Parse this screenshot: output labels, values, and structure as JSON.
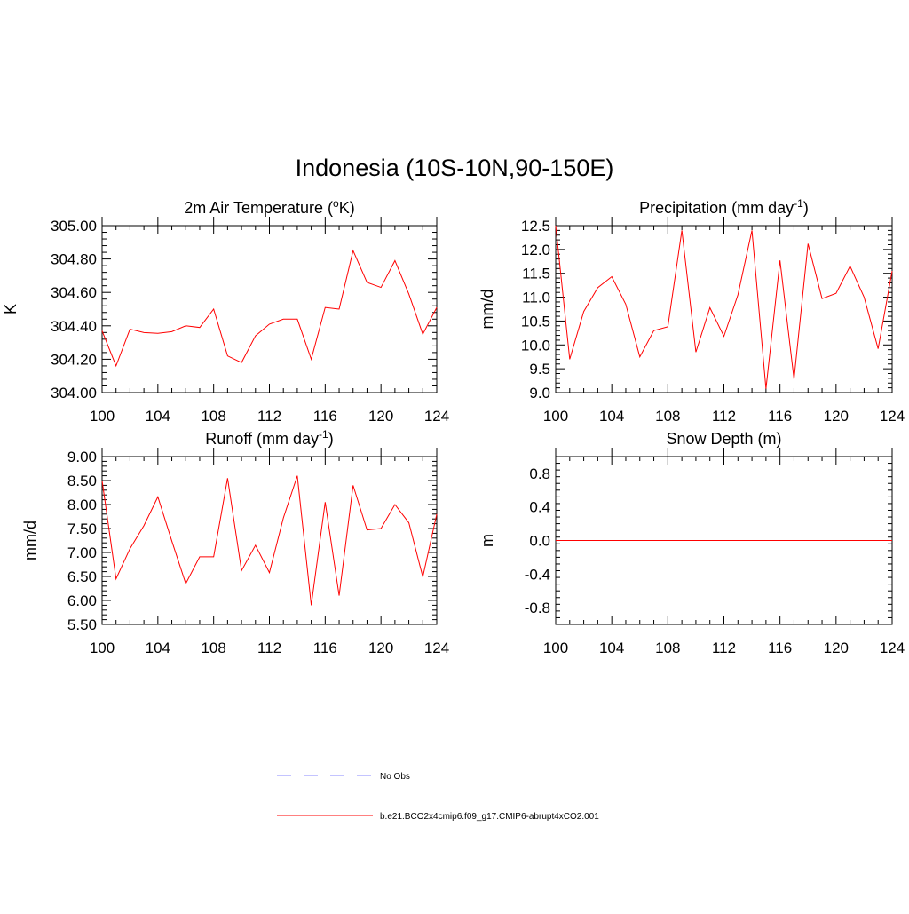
{
  "title": "Indonesia (10S-10N,90-150E)",
  "colors": {
    "model": "#ff0000",
    "obs": "#a0a0ff",
    "frame": "#000000"
  },
  "legend": {
    "obs_label": "No Obs",
    "model_label": "b.e21.BCO2x4cmip6.f09_g17.CMIP6-abrupt4xCO2.001"
  },
  "chart_data": [
    {
      "id": "temp",
      "type": "line",
      "title": "2m Air Temperature (",
      "title_sup": "o",
      "title_suffix": "K)",
      "ylabel": "K",
      "xlim": [
        100,
        124
      ],
      "ylim": [
        304.0,
        305.0
      ],
      "xticks": [
        100,
        104,
        108,
        112,
        116,
        120,
        124
      ],
      "yticks": [
        "304.00",
        "304.20",
        "304.40",
        "304.60",
        "304.80",
        "305.00"
      ],
      "ytick_values": [
        304.0,
        304.2,
        304.4,
        304.6,
        304.8,
        305.0
      ],
      "x": [
        100,
        101,
        102,
        103,
        104,
        105,
        106,
        107,
        108,
        109,
        110,
        111,
        112,
        113,
        114,
        115,
        116,
        117,
        118,
        119,
        120,
        121,
        122,
        123,
        124
      ],
      "series": [
        {
          "values": [
            304.37,
            304.16,
            304.38,
            304.36,
            304.355,
            304.365,
            304.4,
            304.39,
            304.5,
            304.22,
            304.18,
            304.34,
            304.41,
            304.44,
            304.44,
            304.2,
            304.51,
            304.5,
            304.85,
            304.66,
            304.63,
            304.79,
            304.59,
            304.35,
            304.51
          ]
        }
      ]
    },
    {
      "id": "precip",
      "type": "line",
      "title": "Precipitation (mm day",
      "title_sup": "-1",
      "title_suffix": ")",
      "ylabel": "mm/d",
      "xlim": [
        100,
        124
      ],
      "ylim": [
        9.0,
        12.5
      ],
      "xticks": [
        100,
        104,
        108,
        112,
        116,
        120,
        124
      ],
      "yticks": [
        "9.0",
        "9.5",
        "10.0",
        "10.5",
        "11.0",
        "11.5",
        "12.0",
        "12.5"
      ],
      "ytick_values": [
        9.0,
        9.5,
        10.0,
        10.5,
        11.0,
        11.5,
        12.0,
        12.5
      ],
      "x": [
        100,
        101,
        102,
        103,
        104,
        105,
        106,
        107,
        108,
        109,
        110,
        111,
        112,
        113,
        114,
        115,
        116,
        117,
        118,
        119,
        120,
        121,
        122,
        123,
        124
      ],
      "series": [
        {
          "values": [
            12.5,
            9.7,
            10.7,
            11.2,
            11.43,
            10.85,
            9.75,
            10.3,
            10.38,
            12.4,
            9.85,
            10.78,
            10.18,
            11.05,
            12.4,
            9.08,
            11.77,
            9.28,
            12.12,
            10.97,
            11.08,
            11.65,
            11.0,
            9.92,
            11.55
          ]
        }
      ]
    },
    {
      "id": "runoff",
      "type": "line",
      "title": "Runoff (mm day",
      "title_sup": "-1",
      "title_suffix": ")",
      "ylabel": "mm/d",
      "xlim": [
        100,
        124
      ],
      "ylim": [
        5.5,
        9.0
      ],
      "xticks": [
        100,
        104,
        108,
        112,
        116,
        120,
        124
      ],
      "yticks": [
        "5.50",
        "6.00",
        "6.50",
        "7.00",
        "7.50",
        "8.00",
        "8.50",
        "9.00"
      ],
      "ytick_values": [
        5.5,
        6.0,
        6.5,
        7.0,
        7.5,
        8.0,
        8.5,
        9.0
      ],
      "x": [
        100,
        101,
        102,
        103,
        104,
        105,
        106,
        107,
        108,
        109,
        110,
        111,
        112,
        113,
        114,
        115,
        116,
        117,
        118,
        119,
        120,
        121,
        122,
        123,
        124
      ],
      "series": [
        {
          "values": [
            8.5,
            6.45,
            7.08,
            7.56,
            8.16,
            7.24,
            6.35,
            6.91,
            6.91,
            8.55,
            6.62,
            7.15,
            6.58,
            7.72,
            8.6,
            5.9,
            8.05,
            6.1,
            8.4,
            7.47,
            7.5,
            8.0,
            7.62,
            6.49,
            7.8
          ]
        }
      ]
    },
    {
      "id": "snow",
      "type": "line",
      "title": "Snow Depth (m)",
      "title_sup": "",
      "title_suffix": "",
      "ylabel": "m",
      "xlim": [
        100,
        124
      ],
      "ylim": [
        -1.0,
        1.0
      ],
      "xticks": [
        100,
        104,
        108,
        112,
        116,
        120,
        124
      ],
      "yticks": [
        "-0.8",
        "-0.4",
        "0.0",
        "0.4",
        "0.8"
      ],
      "ytick_values": [
        -0.8,
        -0.4,
        0.0,
        0.4,
        0.8
      ],
      "x": [
        100,
        124
      ],
      "series": [
        {
          "values": [
            0.0,
            0.0
          ]
        }
      ]
    }
  ]
}
